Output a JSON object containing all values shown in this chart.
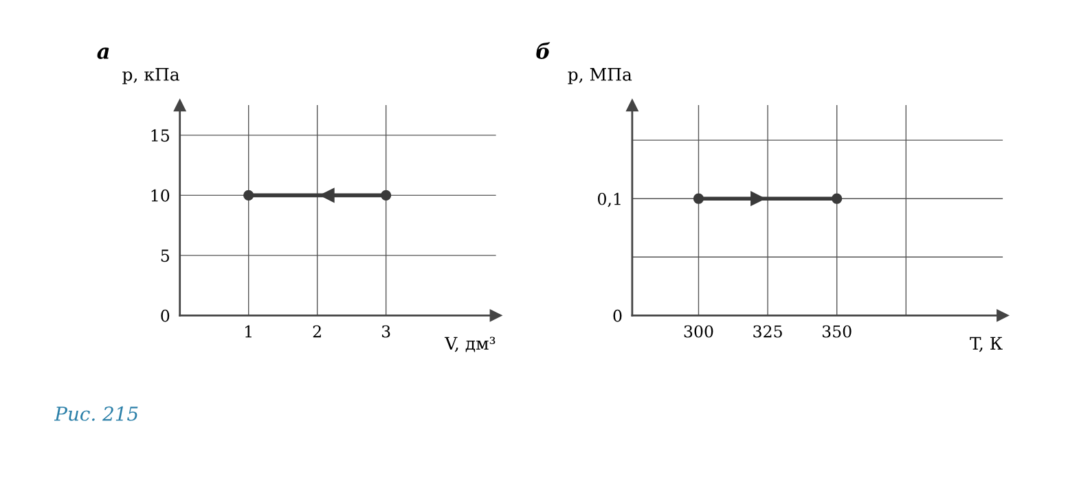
{
  "chart_data": [
    {
      "type": "line",
      "title": "а",
      "xlabel": "V, дм³",
      "ylabel": "p, кПа",
      "annotations": [
        "Рис. 215"
      ],
      "grid": true,
      "marker": "circle",
      "line_style": "solid",
      "xlim": [
        0,
        4.6
      ],
      "ylim": [
        0,
        17.5
      ],
      "xticks": [
        1,
        2,
        3
      ],
      "yticks": [
        0,
        5,
        10,
        15
      ],
      "series": [
        {
          "color": "#3a3a3a",
          "x": [
            3,
            1
          ],
          "values": [
            10,
            10
          ]
        }
      ]
    },
    {
      "type": "line",
      "title": "б",
      "xlabel": "T, К",
      "ylabel": "p, МПа",
      "grid": true,
      "marker": "circle",
      "line_style": "solid",
      "xlim": [
        276,
        410
      ],
      "ylim": [
        0,
        0.18
      ],
      "xticks": [
        300,
        325,
        350,
        {
          "value": 375,
          "label": null
        }
      ],
      "yticks": [
        0,
        {
          "value": 0.05,
          "label": null
        },
        {
          "value": 0.1,
          "label": "0,1"
        },
        {
          "value": 0.15,
          "label": null
        }
      ],
      "series": [
        {
          "color": "#3a3a3a",
          "x": [
            300,
            350
          ],
          "values": [
            0.1,
            0.1
          ]
        }
      ]
    }
  ]
}
